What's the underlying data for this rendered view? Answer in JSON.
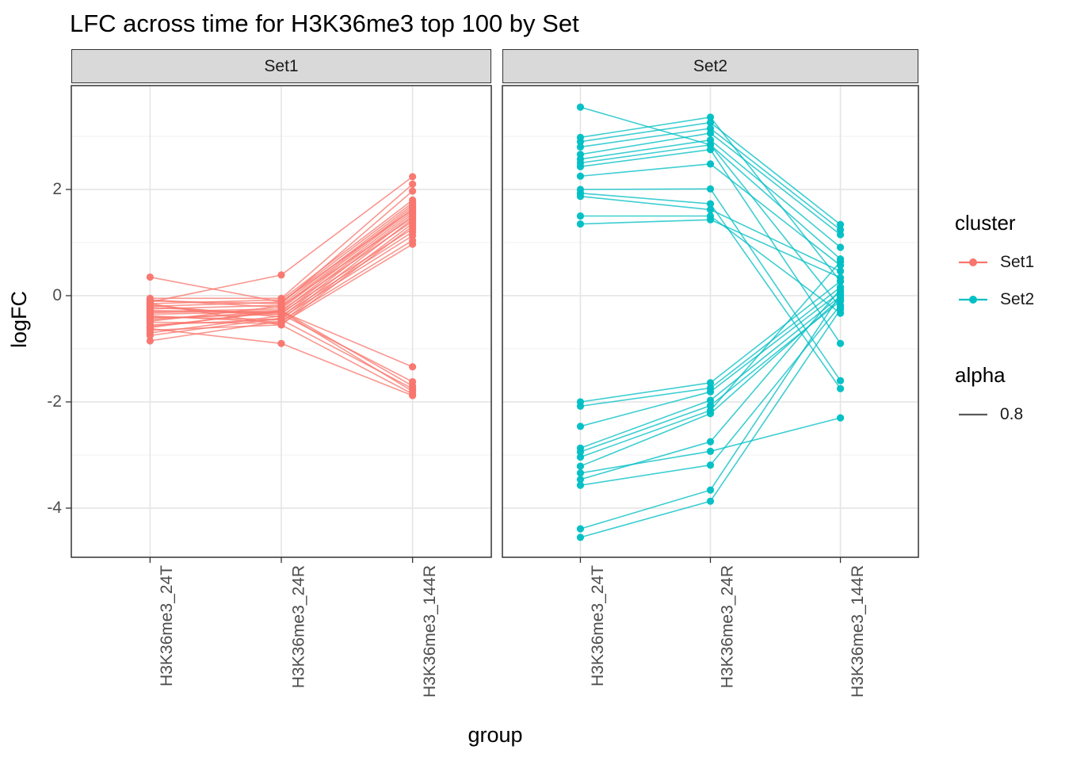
{
  "chart_data": {
    "type": "line",
    "title": "LFC across time for H3K36me3 top 100 by Set",
    "xlabel": "group",
    "ylabel": "logFC",
    "categories": [
      "H3K36me3_24T",
      "H3K36me3_24R",
      "H3K36me3_144R"
    ],
    "y_major_ticks": [
      2,
      0,
      -2,
      -4
    ],
    "y_major_tick_labels": [
      "2",
      "0",
      "-2",
      "-4"
    ],
    "y_minor_ticks": [
      3,
      1,
      -1,
      -3
    ],
    "ylim": [
      -4.93,
      3.96
    ],
    "grid": true,
    "legend_position": "right",
    "line_alpha": 0.8,
    "facets": [
      {
        "name": "Set1",
        "color": "#F8766D",
        "lines": [
          [
            0.35,
            -0.12,
            1.62
          ],
          [
            -0.12,
            0.39,
            2.24
          ],
          [
            -0.05,
            -0.05,
            2.1
          ],
          [
            -0.1,
            -0.15,
            1.97
          ],
          [
            -0.15,
            -0.08,
            1.8
          ],
          [
            -0.2,
            -0.12,
            1.75
          ],
          [
            -0.25,
            -0.18,
            1.71
          ],
          [
            -0.08,
            -0.22,
            1.67
          ],
          [
            -0.3,
            -0.25,
            1.63
          ],
          [
            -0.35,
            -0.3,
            1.59
          ],
          [
            -0.42,
            -0.35,
            1.55
          ],
          [
            -0.18,
            -0.4,
            1.51
          ],
          [
            -0.48,
            -0.2,
            1.47
          ],
          [
            -0.55,
            -0.45,
            1.44
          ],
          [
            -0.6,
            -0.28,
            1.4
          ],
          [
            -0.38,
            -0.5,
            1.36
          ],
          [
            -0.65,
            -0.55,
            1.31
          ],
          [
            -0.28,
            -0.32,
            1.26
          ],
          [
            -0.7,
            -0.38,
            1.2
          ],
          [
            -0.75,
            -0.42,
            1.13
          ],
          [
            -0.85,
            -0.48,
            1.04
          ],
          [
            -0.5,
            -0.52,
            0.97
          ],
          [
            -0.45,
            -0.3,
            -1.34
          ],
          [
            -0.22,
            -0.35,
            -1.62
          ],
          [
            -0.32,
            -0.28,
            -1.7
          ],
          [
            -0.4,
            -0.45,
            -1.75
          ],
          [
            -0.58,
            -0.3,
            -1.8
          ],
          [
            -0.15,
            -0.55,
            -1.85
          ],
          [
            -0.62,
            -0.9,
            -1.88
          ]
        ]
      },
      {
        "name": "Set2",
        "color": "#00BFC4",
        "lines": [
          [
            3.55,
            2.84,
            -0.22
          ],
          [
            2.98,
            3.36,
            0.27
          ],
          [
            2.9,
            3.26,
            1.34
          ],
          [
            2.8,
            3.15,
            1.24
          ],
          [
            2.66,
            3.06,
            1.15
          ],
          [
            2.57,
            2.93,
            0.91
          ],
          [
            2.5,
            2.84,
            0.69
          ],
          [
            2.43,
            2.75,
            -0.9
          ],
          [
            2.25,
            2.48,
            0.57
          ],
          [
            2.0,
            2.01,
            -1.6
          ],
          [
            1.93,
            1.73,
            -1.75
          ],
          [
            1.87,
            1.62,
            0.46
          ],
          [
            1.5,
            1.5,
            -0.33
          ],
          [
            1.35,
            1.43,
            0.34
          ],
          [
            -2.0,
            -1.64,
            0.27
          ],
          [
            -2.08,
            -1.74,
            0.16
          ],
          [
            -2.46,
            -1.81,
            0.07
          ],
          [
            -2.87,
            -1.97,
            -0.01
          ],
          [
            -2.94,
            -2.07,
            -0.1
          ],
          [
            -3.04,
            -2.16,
            0.64
          ],
          [
            -3.21,
            -2.22,
            -0.05
          ],
          [
            -3.34,
            -2.93,
            -2.3
          ],
          [
            -3.46,
            -2.75,
            0.12
          ],
          [
            -3.57,
            -3.19,
            -0.18
          ],
          [
            -4.39,
            -3.66,
            0.02
          ],
          [
            -4.55,
            -3.87,
            -0.26
          ]
        ]
      }
    ]
  },
  "legend": {
    "cluster_title": "cluster",
    "items": [
      {
        "label": "Set1",
        "color": "#F8766D"
      },
      {
        "label": "Set2",
        "color": "#00BFC4"
      }
    ],
    "alpha_title": "alpha",
    "alpha_items": [
      {
        "label": "0.8",
        "color": "#595959"
      }
    ]
  },
  "style_colors": {
    "strip_background": "#d9d9d9",
    "panel_border": "#333333",
    "grid_major": "#e4e4e4",
    "grid_minor": "#f0f0f0",
    "tick_text": "#4d4d4d",
    "tick_mark": "#333333"
  }
}
